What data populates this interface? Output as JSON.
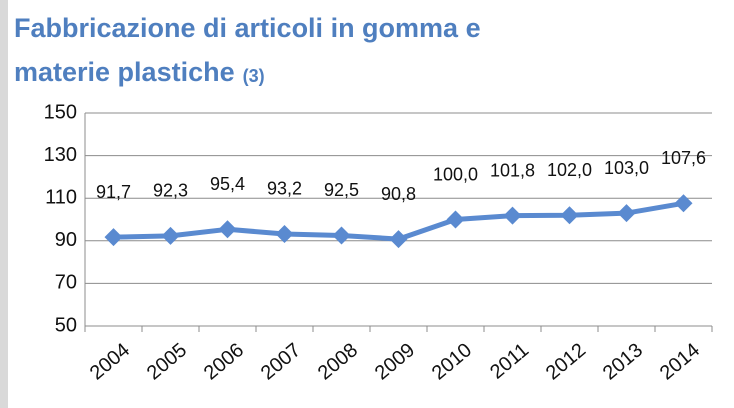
{
  "chart_data": {
    "type": "line",
    "title": "Fabbricazione  di articoli in gomma e",
    "subtitle": "materie plastiche",
    "title_note": "(3)",
    "categories": [
      "2004",
      "2005",
      "2006",
      "2007",
      "2008",
      "2009",
      "2010",
      "2011",
      "2012",
      "2013",
      "2014"
    ],
    "series": [
      {
        "name": null,
        "color": "#5a8ad0",
        "values": [
          91.7,
          92.3,
          95.4,
          93.2,
          92.5,
          90.8,
          100.0,
          101.8,
          102.0,
          103.0,
          107.6
        ],
        "value_labels": [
          "91,7",
          "92,3",
          "95,4",
          "93,2",
          "92,5",
          "90,8",
          "100,0",
          "101,8",
          "102,0",
          "103,0",
          "107,6"
        ]
      }
    ],
    "ylim": [
      50,
      150
    ],
    "yticks": [
      50,
      70,
      90,
      110,
      130,
      150
    ],
    "grid": true
  }
}
